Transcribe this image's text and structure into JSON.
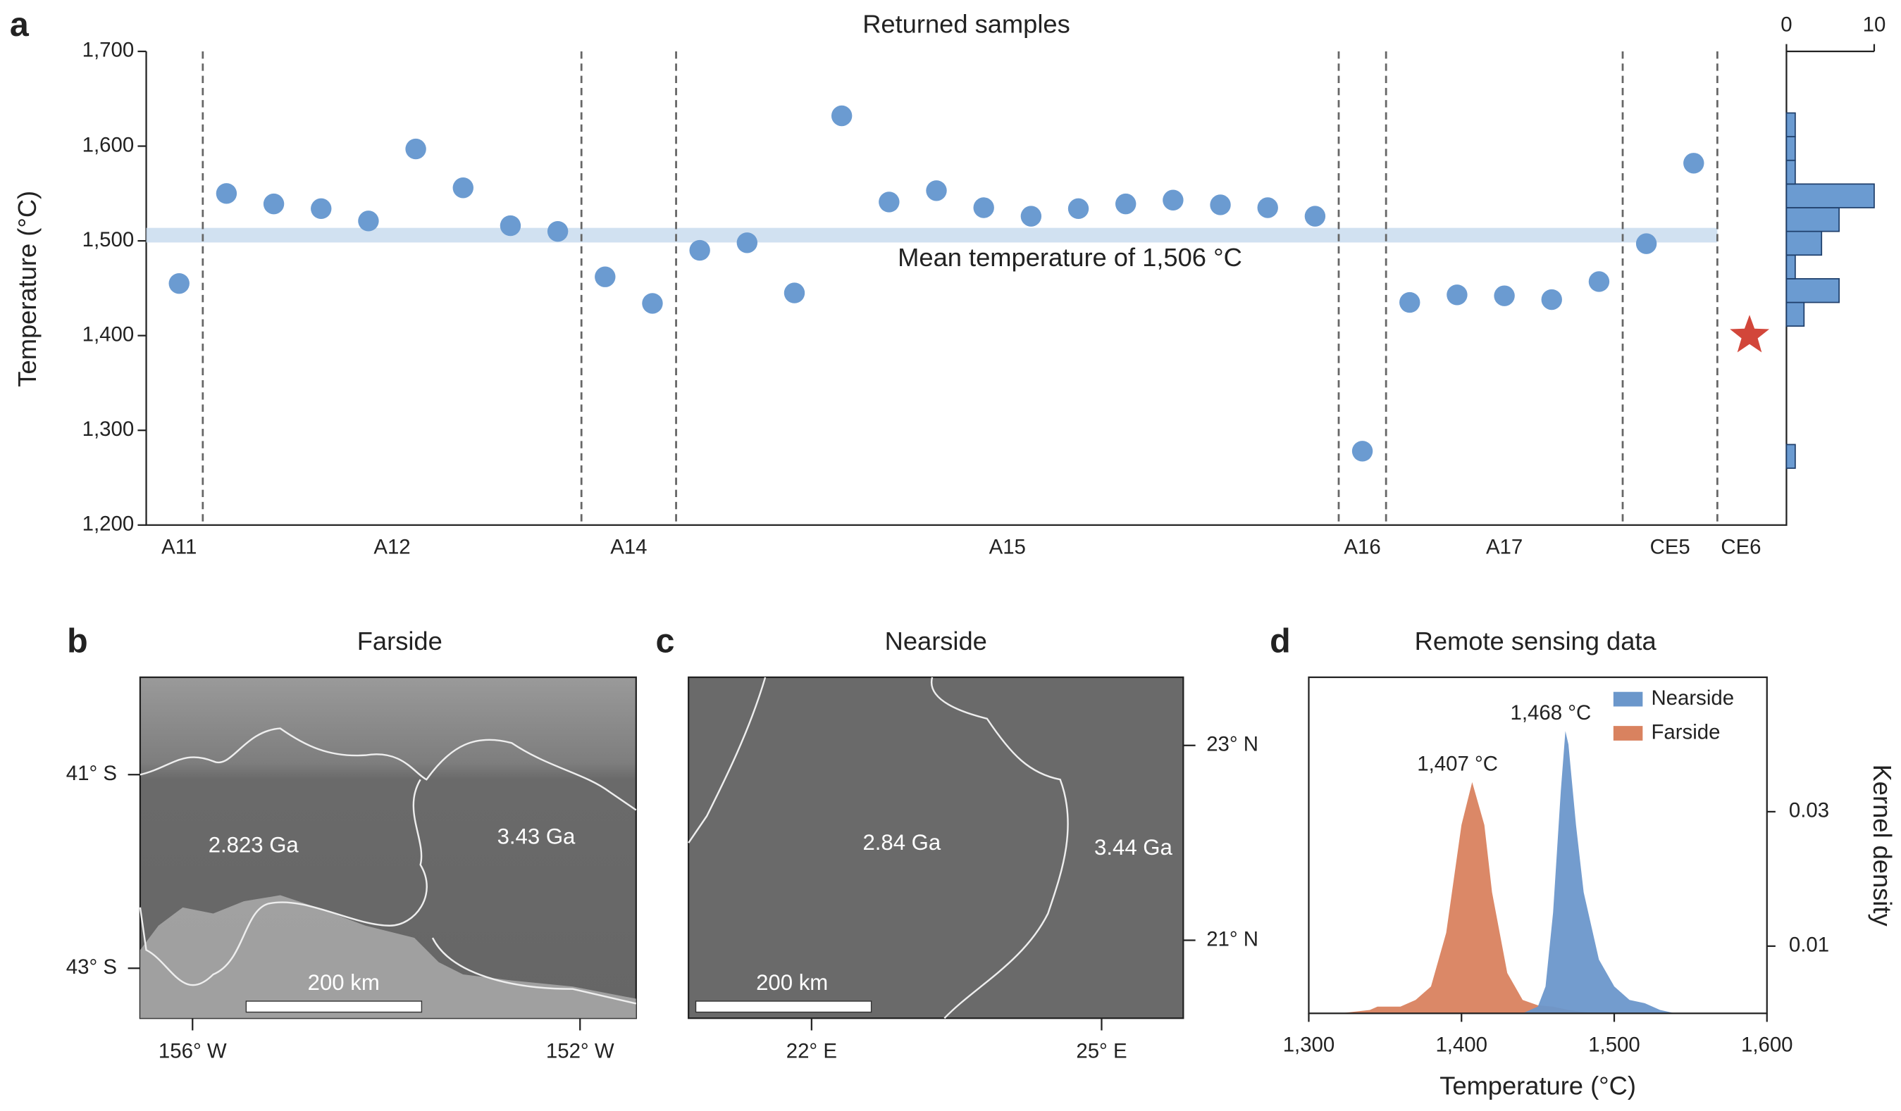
{
  "chart_data": [
    {
      "type": "scatter",
      "panel": "a",
      "title": "Returned samples",
      "ylabel": "Temperature (°C)",
      "ylim": [
        1200,
        1700
      ],
      "yticks": [
        {
          "value": 1200,
          "label": "1,200"
        },
        {
          "value": 1300,
          "label": "1,300"
        },
        {
          "value": 1400,
          "label": "1,400"
        },
        {
          "value": 1500,
          "label": "1,500"
        },
        {
          "value": 1600,
          "label": "1,600"
        },
        {
          "value": 1700,
          "label": "1,700"
        }
      ],
      "color": "#6b9bd1",
      "groups": [
        {
          "name": "A11",
          "values": [
            1455
          ]
        },
        {
          "name": "A12",
          "values": [
            1550,
            1539,
            1534,
            1521,
            1597,
            1556,
            1516,
            1510
          ]
        },
        {
          "name": "A14",
          "values": [
            1462,
            1434
          ]
        },
        {
          "name": "A15",
          "values": [
            1490,
            1498,
            1445,
            1632,
            1541,
            1553,
            1535,
            1526,
            1534,
            1539,
            1543,
            1538,
            1535,
            1526
          ]
        },
        {
          "name": "A16",
          "values": [
            1278
          ]
        },
        {
          "name": "A17",
          "values": [
            1435,
            1443,
            1442,
            1438,
            1457
          ]
        },
        {
          "name": "CE5",
          "values": [
            1497,
            1582
          ]
        },
        {
          "name": "CE6",
          "values": [
            1400
          ],
          "marker": "star",
          "color": "#d2463a"
        }
      ],
      "mean": 1506,
      "annotation": "Mean temperature of 1,506 °C",
      "histogram": {
        "bins": [
          1260,
          1285,
          1310,
          1335,
          1360,
          1385,
          1410,
          1435,
          1460,
          1485,
          1510,
          1535,
          1560,
          1585,
          1610,
          1635
        ],
        "counts": [
          1,
          0,
          0,
          0,
          0,
          0,
          2,
          6,
          1,
          4,
          6,
          10,
          1,
          1,
          1
        ],
        "xlim": [
          0,
          10
        ],
        "xticks": [
          0,
          10
        ],
        "color": "#6b9bd1"
      }
    },
    {
      "type": "area",
      "panel": "d",
      "title": "Remote sensing data",
      "xlabel": "Temperature (°C)",
      "ylabel": "Kernel density",
      "xlim": [
        1300,
        1600
      ],
      "xticks": [
        {
          "value": 1300,
          "label": "1,300"
        },
        {
          "value": 1400,
          "label": "1,400"
        },
        {
          "value": 1500,
          "label": "1,500"
        },
        {
          "value": 1600,
          "label": "1,600"
        }
      ],
      "y2lim": [
        0,
        0.05
      ],
      "y2ticks": [
        0.01,
        0.03
      ],
      "legend": "upper right",
      "series": [
        {
          "name": "Nearside",
          "color": "#6b97cb",
          "axis": "y2",
          "peak_label": "1,468 °C",
          "x": [
            1440,
            1450,
            1455,
            1460,
            1465,
            1468,
            1470,
            1475,
            1480,
            1490,
            1500,
            1510,
            1520,
            1530,
            1540
          ],
          "values": [
            0,
            0.001,
            0.004,
            0.015,
            0.033,
            0.042,
            0.04,
            0.028,
            0.018,
            0.008,
            0.004,
            0.002,
            0.0015,
            0.0005,
            0
          ]
        },
        {
          "name": "Farside",
          "color": "#d9825f",
          "axis": "y2",
          "peak_label": "1,407 °C",
          "x": [
            1320,
            1340,
            1345,
            1360,
            1370,
            1380,
            1390,
            1400,
            1407,
            1415,
            1420,
            1430,
            1440,
            1450,
            1460,
            1470,
            1480,
            1490
          ],
          "values": [
            0,
            0.0005,
            0.001,
            0.001,
            0.002,
            0.004,
            0.012,
            0.028,
            0.0344,
            0.028,
            0.018,
            0.006,
            0.002,
            0.0012,
            0.001,
            0.0005,
            0.0002,
            0
          ]
        }
      ]
    }
  ],
  "maps": [
    {
      "panel": "b",
      "title": "Farside",
      "ages": [
        "2.823 Ga",
        "3.43 Ga"
      ],
      "scale": "200 km",
      "lat_labels": [
        "41° S",
        "43° S"
      ],
      "lon_labels": [
        "156° W",
        "152° W"
      ]
    },
    {
      "panel": "c",
      "title": "Nearside",
      "ages": [
        "2.84 Ga",
        "3.44 Ga"
      ],
      "scale": "200 km",
      "lat_labels": [
        "23° N",
        "21° N"
      ],
      "lon_labels": [
        "22° E",
        "25° E"
      ]
    }
  ]
}
